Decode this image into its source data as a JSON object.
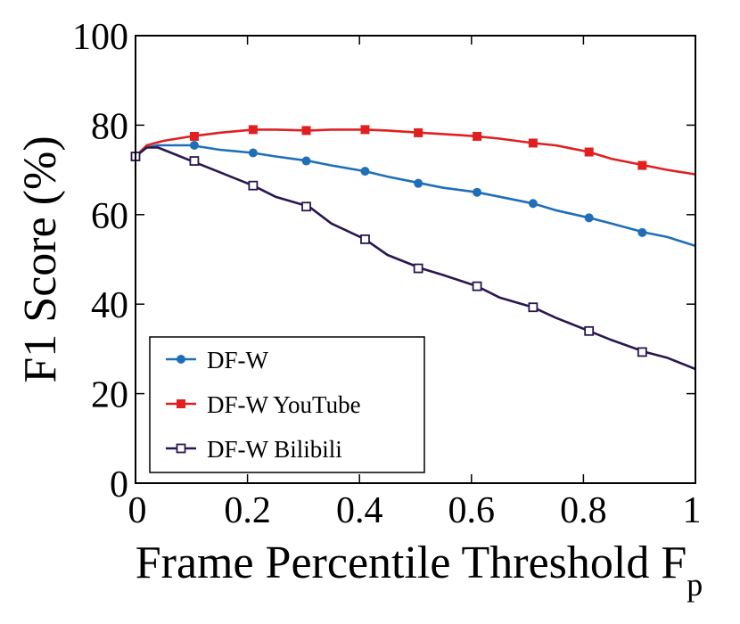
{
  "chart_data": {
    "type": "line",
    "title": "",
    "xlabel": "Frame Percentile Threshold F",
    "xlabel_sub": "p",
    "ylabel": "F1 Score (%)",
    "xlim": [
      0,
      1
    ],
    "ylim": [
      0,
      100
    ],
    "x_ticks": [
      0,
      0.2,
      0.4,
      0.6,
      0.8,
      1
    ],
    "x_tick_labels": [
      "0",
      "0.2",
      "0.4",
      "0.6",
      "0.8",
      "1"
    ],
    "y_ticks": [
      0,
      20,
      40,
      60,
      80,
      100
    ],
    "y_tick_labels": [
      "0",
      "20",
      "40",
      "60",
      "80",
      "100"
    ],
    "grid": false,
    "legend_position": "bottom-left",
    "series": [
      {
        "name": "DF-W",
        "color": "#1f6fb8",
        "marker": "circle",
        "x": [
          0,
          0.02,
          0.04,
          0.06,
          0.1,
          0.15,
          0.21,
          0.25,
          0.31,
          0.35,
          0.41,
          0.45,
          0.51,
          0.55,
          0.61,
          0.65,
          0.71,
          0.75,
          0.81,
          0.85,
          0.91,
          0.95,
          1.0
        ],
        "y": [
          73,
          75,
          75.5,
          75.5,
          75.5,
          74.5,
          73.8,
          73,
          72,
          71,
          69.7,
          68.5,
          67,
          66,
          65,
          64,
          62.5,
          61,
          59.3,
          58,
          56,
          55,
          53
        ],
        "marker_x": [
          0,
          0.105,
          0.21,
          0.305,
          0.41,
          0.505,
          0.61,
          0.71,
          0.81,
          0.905
        ],
        "marker_y": [
          73,
          75.5,
          73.8,
          72,
          69.7,
          67,
          65,
          62.5,
          59.3,
          56
        ]
      },
      {
        "name": "DF-W YouTube",
        "color": "#e02020",
        "marker": "square",
        "x": [
          0,
          0.02,
          0.05,
          0.1,
          0.15,
          0.21,
          0.25,
          0.31,
          0.35,
          0.41,
          0.45,
          0.51,
          0.55,
          0.61,
          0.65,
          0.71,
          0.75,
          0.81,
          0.85,
          0.91,
          0.95,
          1.0
        ],
        "y": [
          73,
          75.5,
          76.5,
          77.5,
          78.3,
          79,
          79,
          78.8,
          79,
          79,
          78.8,
          78.3,
          78,
          77.5,
          77,
          76,
          75.5,
          74,
          72.5,
          71,
          70,
          69
        ],
        "marker_x": [
          0,
          0.105,
          0.21,
          0.305,
          0.41,
          0.505,
          0.61,
          0.71,
          0.81,
          0.905
        ],
        "marker_y": [
          73,
          77.5,
          79,
          78.8,
          79,
          78.3,
          77.5,
          76,
          74,
          71
        ]
      },
      {
        "name": "DF-W Bilibili",
        "color": "#2a1650",
        "marker": "open-square",
        "x": [
          0,
          0.02,
          0.04,
          0.06,
          0.1,
          0.15,
          0.21,
          0.25,
          0.31,
          0.35,
          0.41,
          0.45,
          0.51,
          0.55,
          0.61,
          0.65,
          0.71,
          0.75,
          0.81,
          0.85,
          0.91,
          0.95,
          1.0
        ],
        "y": [
          73,
          75,
          75,
          74,
          72,
          69.5,
          66.5,
          64,
          61.8,
          58,
          54.5,
          51,
          48,
          46.5,
          44,
          41.5,
          39.3,
          37,
          34,
          32,
          29.3,
          28,
          25.5
        ],
        "marker_x": [
          0,
          0.105,
          0.21,
          0.305,
          0.41,
          0.505,
          0.61,
          0.71,
          0.81,
          0.905
        ],
        "marker_y": [
          73,
          72,
          66.5,
          61.8,
          54.5,
          48,
          44,
          39.3,
          34,
          29.3
        ]
      }
    ]
  }
}
